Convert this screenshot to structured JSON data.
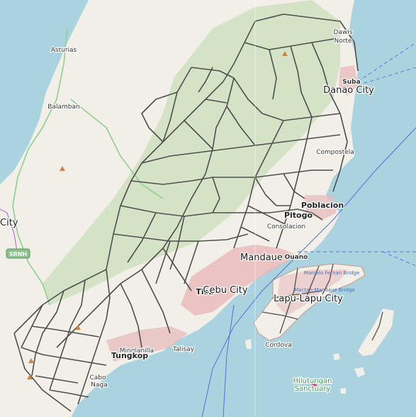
{
  "map": {
    "colors": {
      "water": "#aad3df",
      "land": "#f2efe9",
      "forest": "#c8dcb4",
      "boundary": "#4f4f4f",
      "urban": "#d47f84",
      "road_green": "#8ed08e",
      "border_purple": "#b27bc4",
      "ferry": "#5070d8"
    },
    "labels": {
      "dawis_norte": "Dawis\nNorte",
      "dawis": "Dawis",
      "norte": "Norte",
      "asturias": "Asturias",
      "suba": "Suba",
      "danao_city": "Danao City",
      "balamban": "Balamban",
      "compostela": "Compostela",
      "poblacion": "Poblacion",
      "pitogo": "Pitogo",
      "consolacion": "Consolacion",
      "city": "City",
      "mandaue": "Mandaue",
      "ouano": "Ouano",
      "tisa": "Tisa",
      "cebu_city": "Cebu City",
      "lapu_lapu_city": "Lapu-Lapu City",
      "cordova": "Cordova",
      "minglanilla": "Minglanilla",
      "tungkop": "Tungkop",
      "talisay": "Talisay",
      "cabo": "Cabo",
      "naga": "Naga",
      "hilutungan": "Hilutungan",
      "sanctuary": "Sanctuary",
      "road_badge": "SRNH",
      "bridge_1": "Marcelo Fernan Bridge",
      "bridge_2": "Mactan-Mandaue Bridge"
    }
  }
}
